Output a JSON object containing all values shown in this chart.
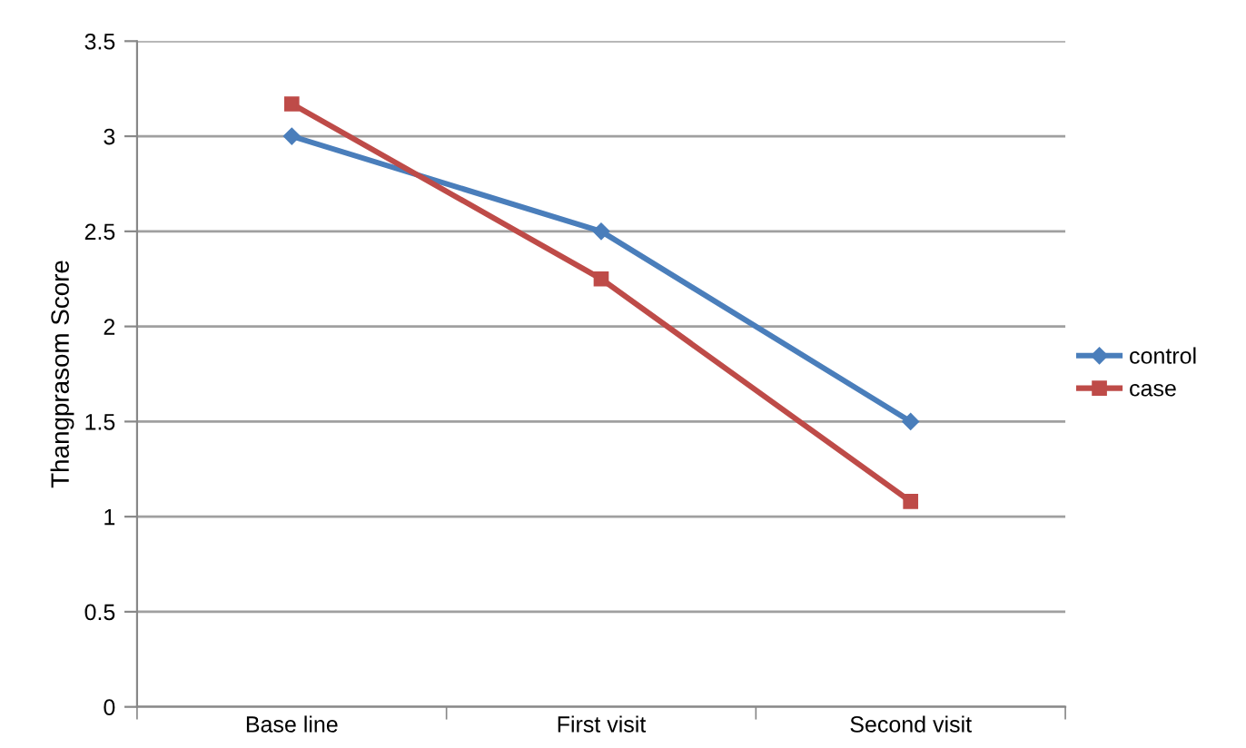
{
  "chart_data": {
    "type": "line",
    "ylabel": "Thangprasom Score",
    "categories": [
      "Base line",
      "First visit",
      "Second visit"
    ],
    "series": [
      {
        "name": "control",
        "color": "#4a7ebb",
        "marker": "diamond",
        "values": [
          3,
          2.5,
          1.5
        ]
      },
      {
        "name": "case",
        "color": "#be4b48",
        "marker": "square",
        "values": [
          3.17,
          2.25,
          1.08
        ]
      }
    ],
    "ylim": [
      0,
      3.5
    ],
    "yticks": [
      {
        "value": 0,
        "label": "0"
      },
      {
        "value": 0.5,
        "label": "0.5"
      },
      {
        "value": 1,
        "label": "1"
      },
      {
        "value": 1.5,
        "label": "1.5"
      },
      {
        "value": 2,
        "label": "2"
      },
      {
        "value": 2.5,
        "label": "2.5"
      },
      {
        "value": 3,
        "label": "3"
      },
      {
        "value": 3.5,
        "label": "3.5"
      }
    ],
    "grid": "y",
    "legend": "right"
  }
}
